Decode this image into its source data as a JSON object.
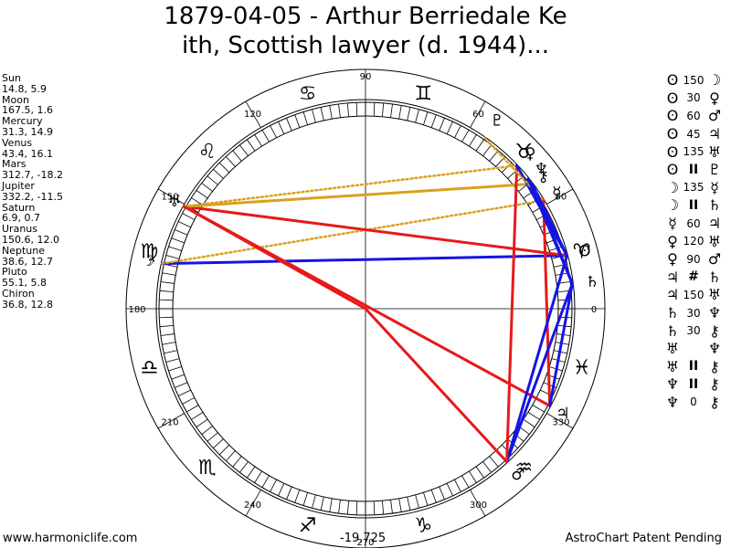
{
  "title": {
    "line1": "1879-04-05 - Arthur Berriedale Ke",
    "line2": "ith, Scottish lawyer (d. 1944)..."
  },
  "planets": [
    {
      "name": "Sun",
      "value": "14.8, 5.9"
    },
    {
      "name": "Moon",
      "value": "167.5, 1.6"
    },
    {
      "name": "Mercury",
      "value": "31.3, 14.9"
    },
    {
      "name": "Venus",
      "value": "43.4, 16.1"
    },
    {
      "name": "Mars",
      "value": "312.7, -18.2"
    },
    {
      "name": "Jupiter",
      "value": "332.2, -11.5"
    },
    {
      "name": "Saturn",
      "value": "6.9, 0.7"
    },
    {
      "name": "Uranus",
      "value": "150.6, 12.0"
    },
    {
      "name": "Neptune",
      "value": "38.6, 12.7"
    },
    {
      "name": "Pluto",
      "value": "55.1, 5.8"
    },
    {
      "name": "Chiron",
      "value": "36.8, 12.8"
    }
  ],
  "aspects": [
    {
      "p1": "Sun",
      "angle": "150",
      "p2": "Moon"
    },
    {
      "p1": "Sun",
      "angle": "30",
      "p2": "Venus"
    },
    {
      "p1": "Sun",
      "angle": "60",
      "p2": "Mars"
    },
    {
      "p1": "Sun",
      "angle": "45",
      "p2": "Jupiter"
    },
    {
      "p1": "Sun",
      "angle": "135",
      "p2": "Uranus"
    },
    {
      "p1": "Sun",
      "angle": "II",
      "p2": "Pluto"
    },
    {
      "p1": "Moon",
      "angle": "135",
      "p2": "Mercury"
    },
    {
      "p1": "Moon",
      "angle": "II",
      "p2": "Saturn"
    },
    {
      "p1": "Mercury",
      "angle": "60",
      "p2": "Jupiter"
    },
    {
      "p1": "Venus",
      "angle": "120",
      "p2": "Uranus"
    },
    {
      "p1": "Venus",
      "angle": "90",
      "p2": "Mars"
    },
    {
      "p1": "Jupiter",
      "angle": "#",
      "p2": "Saturn"
    },
    {
      "p1": "Jupiter",
      "angle": "150",
      "p2": "Uranus"
    },
    {
      "p1": "Saturn",
      "angle": "30",
      "p2": "Neptune"
    },
    {
      "p1": "Saturn",
      "angle": "30",
      "p2": "Chiron"
    },
    {
      "p1": "Uranus",
      "angle": "",
      "p2": "Neptune"
    },
    {
      "p1": "Uranus",
      "angle": "II",
      "p2": "Chiron"
    },
    {
      "p1": "Neptune",
      "angle": "II",
      "p2": "Chiron"
    },
    {
      "p1": "Neptune",
      "angle": "0",
      "p2": "Chiron"
    }
  ],
  "degree_labels": [
    "0",
    "30",
    "60",
    "90",
    "120",
    "150",
    "180",
    "210",
    "240",
    "270",
    "300",
    "330"
  ],
  "footer": {
    "left": "www.harmoniclife.com",
    "center": "-19,725",
    "right": "AstroChart Patent Pending"
  },
  "glyphs": {
    "Sun": "ʘ",
    "Moon": "☽",
    "Mercury": "☿",
    "Venus": "♀",
    "Mars": "♂",
    "Jupiter": "♃",
    "Saturn": "♄",
    "Uranus": "♅",
    "Neptune": "♆",
    "Pluto": "♇",
    "Chiron": "⚷"
  },
  "signs": [
    {
      "name": "Aries",
      "glyph": "♈",
      "lon": 15
    },
    {
      "name": "Taurus",
      "glyph": "♉",
      "lon": 45
    },
    {
      "name": "Gemini",
      "glyph": "♊",
      "lon": 75
    },
    {
      "name": "Cancer",
      "glyph": "♋",
      "lon": 105
    },
    {
      "name": "Leo",
      "glyph": "♌",
      "lon": 135
    },
    {
      "name": "Virgo",
      "glyph": "♍",
      "lon": 165
    },
    {
      "name": "Libra",
      "glyph": "♎",
      "lon": 195
    },
    {
      "name": "Scorpio",
      "glyph": "♏",
      "lon": 225
    },
    {
      "name": "Sagittarius",
      "glyph": "♐",
      "lon": 255
    },
    {
      "name": "Capricorn",
      "glyph": "♑",
      "lon": 285
    },
    {
      "name": "Aquarius",
      "glyph": "♒",
      "lon": 315
    },
    {
      "name": "Pisces",
      "glyph": "♓",
      "lon": 345
    }
  ],
  "colors": {
    "red": "#e61a1a",
    "blue": "#1414e6",
    "gold": "#d9a21c"
  },
  "chart_data": {
    "type": "aspect wheel",
    "positions": [
      {
        "planet": "Sun",
        "longitude": 14.8,
        "latitude": 5.9
      },
      {
        "planet": "Moon",
        "longitude": 167.5,
        "latitude": 1.6
      },
      {
        "planet": "Mercury",
        "longitude": 31.3,
        "latitude": 14.9
      },
      {
        "planet": "Venus",
        "longitude": 43.4,
        "latitude": 16.1
      },
      {
        "planet": "Mars",
        "longitude": 312.7,
        "latitude": -18.2
      },
      {
        "planet": "Jupiter",
        "longitude": 332.2,
        "latitude": -11.5
      },
      {
        "planet": "Saturn",
        "longitude": 6.9,
        "latitude": 0.7
      },
      {
        "planet": "Uranus",
        "longitude": 150.6,
        "latitude": 12.0
      },
      {
        "planet": "Neptune",
        "longitude": 38.6,
        "latitude": 12.7
      },
      {
        "planet": "Pluto",
        "longitude": 55.1,
        "latitude": 5.8
      },
      {
        "planet": "Chiron",
        "longitude": 36.8,
        "latitude": 12.8
      }
    ],
    "aspect_lines": [
      {
        "from": "Moon",
        "to": "Sun",
        "color": "blue",
        "style": "solid"
      },
      {
        "from": "Moon",
        "to": "Mercury",
        "color": "gold",
        "style": "dotted"
      },
      {
        "from": "Uranus",
        "to": "Sun",
        "color": "red",
        "style": "solid"
      },
      {
        "from": "Uranus",
        "to": "Venus",
        "color": "gold",
        "style": "dotted"
      },
      {
        "from": "Uranus",
        "to": "Chiron",
        "color": "gold",
        "style": "solid"
      },
      {
        "from": "Uranus",
        "to": "Jupiter",
        "color": "red",
        "style": "dotted"
      },
      {
        "from": "Uranus",
        "to": "Jupiter",
        "color": "red",
        "style": "solid"
      },
      {
        "from": "Uranus",
        "to": "Center",
        "color": "red",
        "style": "solid"
      },
      {
        "from": "Center",
        "to": "Mars",
        "color": "red",
        "style": "solid"
      },
      {
        "from": "Mercury",
        "to": "Jupiter",
        "color": "red",
        "style": "solid"
      },
      {
        "from": "Mars",
        "to": "Sun",
        "color": "blue",
        "style": "solid"
      },
      {
        "from": "Mars",
        "to": "Saturn",
        "color": "blue",
        "style": "solid"
      },
      {
        "from": "Mars",
        "to": "Venus",
        "color": "red",
        "style": "solid"
      },
      {
        "from": "Jupiter",
        "to": "Saturn",
        "color": "blue",
        "style": "solid"
      },
      {
        "from": "Venus",
        "to": "Sun",
        "color": "blue",
        "style": "solid"
      },
      {
        "from": "Pluto",
        "to": "Mercury",
        "color": "gold",
        "style": "dotted"
      },
      {
        "from": "Neptune",
        "to": "Saturn",
        "color": "blue",
        "style": "solid"
      },
      {
        "from": "Chiron",
        "to": "Saturn",
        "color": "blue",
        "style": "solid"
      },
      {
        "from": "Chiron",
        "to": "Sun",
        "color": "blue",
        "style": "solid"
      }
    ]
  }
}
